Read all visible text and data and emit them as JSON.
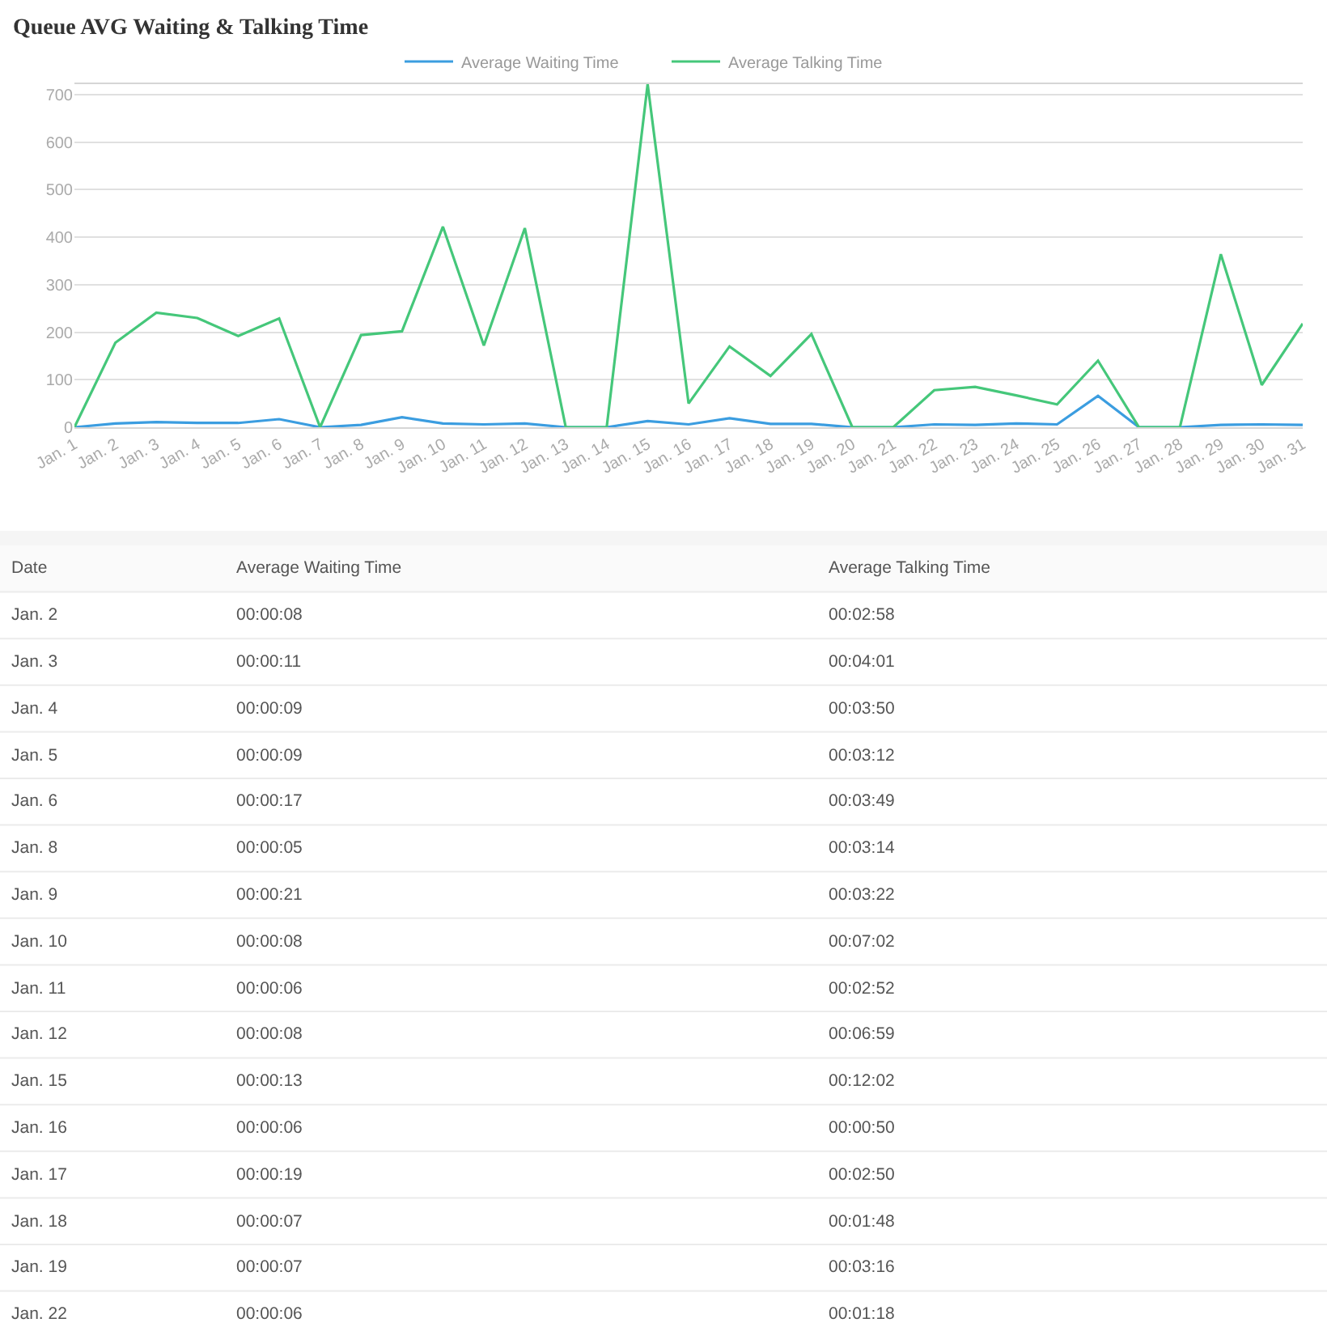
{
  "chart_data": {
    "type": "line",
    "title": "Queue AVG Waiting & Talking Time",
    "categories": [
      "Jan. 1",
      "Jan. 2",
      "Jan. 3",
      "Jan. 4",
      "Jan. 5",
      "Jan. 6",
      "Jan. 7",
      "Jan. 8",
      "Jan. 9",
      "Jan. 10",
      "Jan. 11",
      "Jan. 12",
      "Jan. 13",
      "Jan. 14",
      "Jan. 15",
      "Jan. 16",
      "Jan. 17",
      "Jan. 18",
      "Jan. 19",
      "Jan. 20",
      "Jan. 21",
      "Jan. 22",
      "Jan. 23",
      "Jan. 24",
      "Jan. 25",
      "Jan. 26",
      "Jan. 27",
      "Jan. 28",
      "Jan. 29",
      "Jan. 30",
      "Jan. 31"
    ],
    "series": [
      {
        "name": "Average Waiting Time",
        "color": "#3b9de0",
        "values": [
          0,
          8,
          11,
          9,
          9,
          17,
          0,
          5,
          21,
          8,
          6,
          8,
          0,
          0,
          13,
          6,
          19,
          7,
          7,
          0,
          0,
          6,
          5,
          8,
          6,
          66,
          0,
          0,
          5,
          6,
          5
        ]
      },
      {
        "name": "Average Talking Time",
        "color": "#45c77a",
        "values": [
          0,
          178,
          241,
          230,
          192,
          229,
          0,
          194,
          202,
          422,
          172,
          419,
          0,
          0,
          722,
          50,
          170,
          108,
          196,
          0,
          0,
          78,
          85,
          67,
          48,
          140,
          0,
          0,
          364,
          89,
          218
        ]
      }
    ],
    "ylim": [
      0,
      722
    ],
    "yticks": [
      0,
      100,
      200,
      300,
      400,
      500,
      600,
      700
    ],
    "grid": "y",
    "legend": "top",
    "marker": "none",
    "line_style": "solid",
    "annotations": [
      "Date",
      "Average Waiting Time",
      "Average Talking Time",
      "Jan. 2",
      "00:00:08",
      "00:02:58",
      "Jan. 3",
      "00:00:11",
      "00:04:01",
      "Jan. 4",
      "00:00:09",
      "00:03:50",
      "Jan. 5",
      "00:00:09",
      "00:03:12",
      "Jan. 6",
      "00:00:17",
      "00:03:49",
      "Jan. 8",
      "00:00:05",
      "00:03:14",
      "Jan. 9",
      "00:00:21",
      "00:03:22",
      "Jan. 10",
      "00:00:08",
      "00:07:02",
      "Jan. 11",
      "00:00:06",
      "00:02:52",
      "Jan. 12",
      "00:00:08",
      "00:06:59",
      "Jan. 15",
      "00:00:13",
      "00:12:02",
      "Jan. 16",
      "00:00:06",
      "00:00:50",
      "Jan. 17",
      "00:00:19",
      "00:02:50",
      "Jan. 18",
      "00:00:07",
      "00:01:48",
      "Jan. 19",
      "00:00:07",
      "00:03:16",
      "Jan. 22",
      "00:00:06",
      "00:01:18"
    ]
  }
}
